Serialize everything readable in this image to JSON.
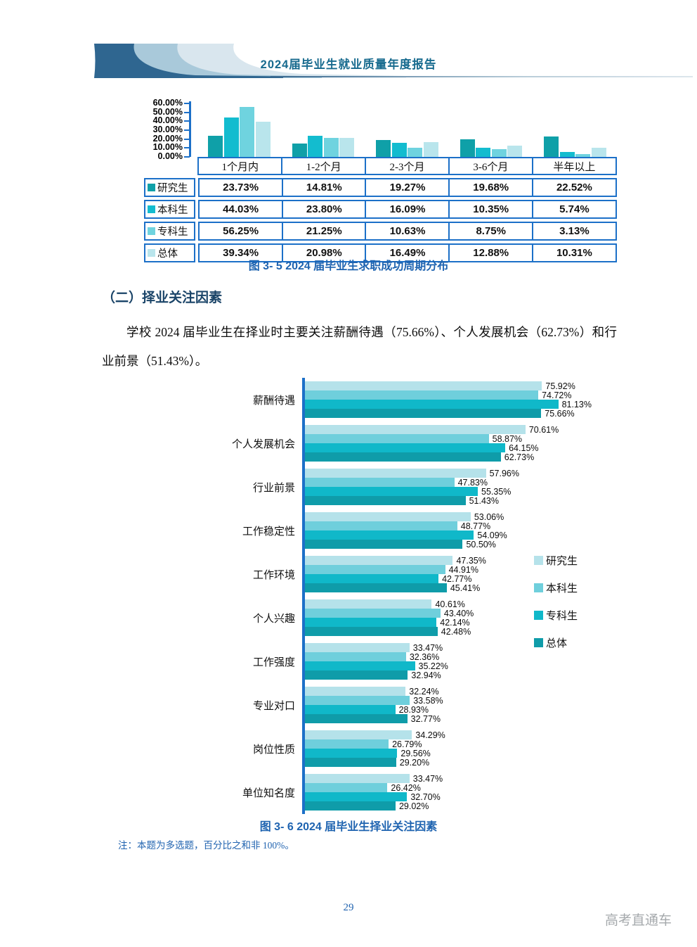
{
  "page": {
    "header_title": "2024届毕业生就业质量年度报告",
    "page_number": "29",
    "watermark": "高考直通车"
  },
  "section": {
    "heading": "（二）择业关注因素",
    "paragraph": "学校 2024 届毕业生在择业时主要关注薪酬待遇（75.66%）、个人发展机会（62.73%）和行业前景（51.43%）。"
  },
  "figure1": {
    "caption": "图 3- 5 2024 届毕业生求职成功周期分布"
  },
  "figure2": {
    "caption": "图 3- 6 2024 届毕业生择业关注因素",
    "note": "注：本题为多选题，百分比之和非 100%。"
  },
  "chart_data": [
    {
      "type": "bar",
      "title": "图 3- 5 2024 届毕业生求职成功周期分布",
      "categories": [
        "1个月内",
        "1-2个月",
        "2-3个月",
        "3-6个月",
        "半年以上"
      ],
      "series": [
        {
          "name": "研究生",
          "color": "#0fa0a8",
          "values": [
            23.73,
            14.81,
            19.27,
            19.68,
            22.52
          ]
        },
        {
          "name": "本科生",
          "color": "#13bccf",
          "values": [
            44.03,
            23.8,
            16.09,
            10.35,
            5.74
          ]
        },
        {
          "name": "专科生",
          "color": "#6fd3df",
          "values": [
            56.25,
            21.25,
            10.63,
            8.75,
            3.13
          ]
        },
        {
          "name": "总体",
          "color": "#b9e5ec",
          "values": [
            39.34,
            20.98,
            16.49,
            12.88,
            10.31
          ]
        }
      ],
      "ylim": [
        0,
        60
      ],
      "ytick_labels": [
        "60.00%",
        "50.00%",
        "40.00%",
        "30.00%",
        "20.00%",
        "10.00%",
        "0.00%"
      ],
      "grid": false,
      "legend_position": "table-left",
      "value_suffix": "%"
    },
    {
      "type": "bar-horizontal",
      "title": "图 3- 6 2024 届毕业生择业关注因素",
      "categories": [
        "薪酬待遇",
        "个人发展机会",
        "行业前景",
        "工作稳定性",
        "工作环境",
        "个人兴趣",
        "工作强度",
        "专业对口",
        "岗位性质",
        "单位知名度"
      ],
      "series": [
        {
          "name": "研究生",
          "color": "#b5e2ea",
          "values": [
            75.92,
            70.61,
            57.96,
            53.06,
            47.35,
            40.61,
            33.47,
            32.24,
            34.29,
            33.47
          ]
        },
        {
          "name": "本科生",
          "color": "#6fcfdc",
          "values": [
            74.72,
            58.87,
            47.83,
            48.77,
            44.91,
            43.4,
            32.36,
            33.58,
            26.79,
            26.42
          ]
        },
        {
          "name": "专科生",
          "color": "#10b8c9",
          "values": [
            81.13,
            64.15,
            55.35,
            54.09,
            42.77,
            42.14,
            35.22,
            28.93,
            29.56,
            32.7
          ]
        },
        {
          "name": "总体",
          "color": "#0f9ca9",
          "values": [
            75.66,
            62.73,
            51.43,
            50.5,
            45.41,
            42.48,
            32.94,
            32.77,
            29.2,
            29.02
          ]
        }
      ],
      "xlim": [
        0,
        90
      ],
      "grid": false,
      "legend_position": "right",
      "value_labels": true,
      "value_suffix": "%"
    }
  ]
}
